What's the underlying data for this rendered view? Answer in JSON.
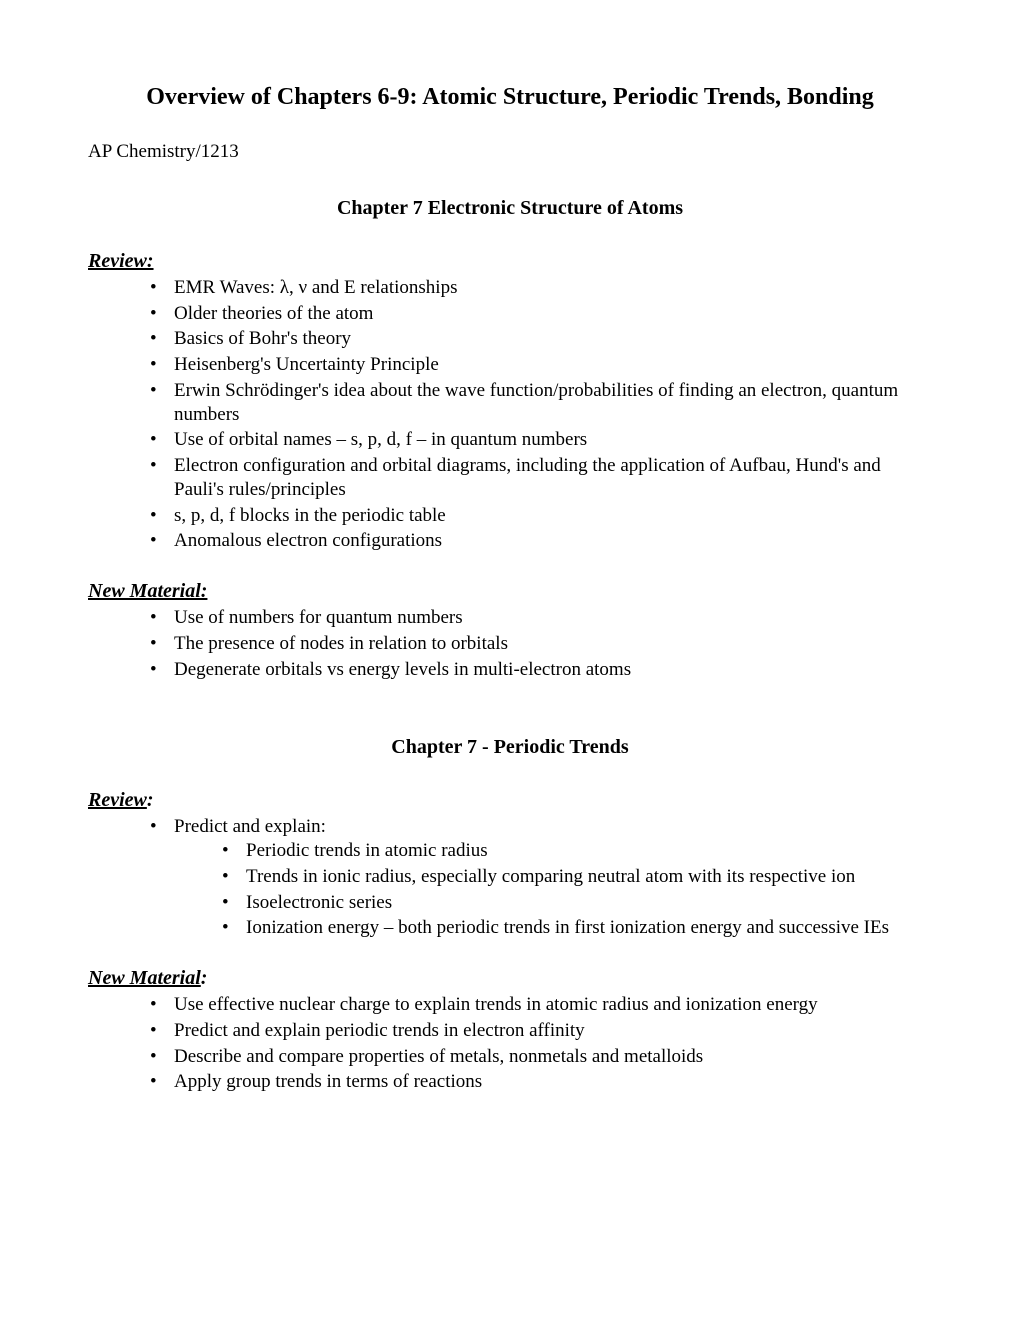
{
  "title": "Overview of Chapters 6-9:  Atomic Structure, Periodic Trends, Bonding",
  "course": "AP Chemistry/1213",
  "sections": [
    {
      "heading": "Chapter 7 Electronic Structure of Atoms",
      "blocks": [
        {
          "label": "Review:",
          "underline_full": true,
          "items": [
            "EMR Waves:  λ, ν and E relationships",
            "Older theories of the atom",
            "Basics of Bohr's theory",
            "Heisenberg's Uncertainty Principle",
            "Erwin Schrödinger's idea about the wave function/probabilities of finding an electron, quantum numbers",
            "Use of orbital names – s, p, d, f – in quantum numbers",
            "Electron configuration and orbital diagrams, including the application of Aufbau, Hund's and Pauli's rules/principles",
            "s, p, d, f blocks in the periodic table",
            "Anomalous electron configurations"
          ]
        },
        {
          "label": "New Material:",
          "underline_full": true,
          "items": [
            "Use of numbers for quantum numbers",
            "The presence of nodes in relation to orbitals",
            "Degenerate orbitals vs energy levels in multi-electron atoms"
          ]
        }
      ]
    },
    {
      "heading": "Chapter 7 - Periodic Trends",
      "blocks": [
        {
          "label_ul": "Review",
          "label_rest": ":",
          "underline_full": false,
          "items": [
            "Predict and explain:"
          ],
          "subitems": [
            "Periodic trends in atomic radius",
            "Trends in ionic radius, especially comparing neutral atom with its respective ion",
            "Isoelectronic series",
            "Ionization energy – both periodic trends in first ionization energy and successive IEs"
          ]
        },
        {
          "label_ul": "New Material",
          "label_rest": ":",
          "underline_full": false,
          "items": [
            "Use effective nuclear charge to explain trends in atomic radius and ionization energy",
            "Predict and explain periodic trends in electron affinity",
            "Describe and compare properties of metals, nonmetals and metalloids",
            "Apply group trends in terms of reactions"
          ]
        }
      ]
    }
  ],
  "colors": {
    "background": "#ffffff",
    "text": "#000000"
  },
  "typography": {
    "font_family": "Times New Roman",
    "body_fontsize": 19,
    "title_fontsize": 24,
    "heading_fontsize": 20
  }
}
